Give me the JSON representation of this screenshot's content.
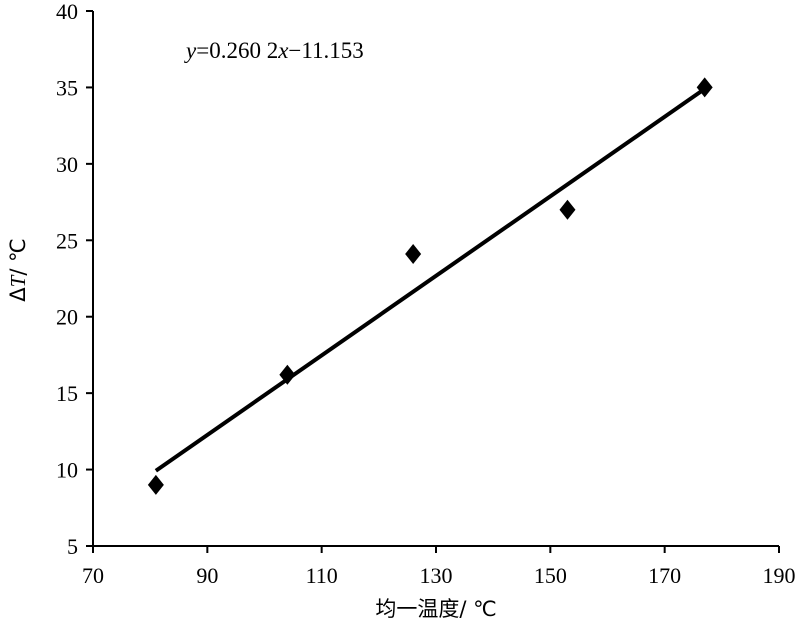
{
  "chart_data": {
    "type": "scatter",
    "xlabel": "均一温度/ ℃",
    "ylabel": "ΔT/ ℃",
    "ylabel_parts": {
      "prefix": "Δ",
      "var": "T",
      "unit": "/ ℃"
    },
    "xlim": [
      70,
      190
    ],
    "ylim": [
      5,
      40
    ],
    "x_ticks": [
      70,
      90,
      110,
      130,
      150,
      170,
      190
    ],
    "y_ticks": [
      5,
      10,
      15,
      20,
      25,
      30,
      35,
      40
    ],
    "grid": false,
    "legend": "none",
    "series": [
      {
        "marker": "diamond",
        "points": [
          {
            "x": 81,
            "y": 9
          },
          {
            "x": 104,
            "y": 16.2
          },
          {
            "x": 126,
            "y": 24.1
          },
          {
            "x": 153,
            "y": 27
          },
          {
            "x": 177,
            "y": 35
          }
        ]
      }
    ],
    "trendline": {
      "slope": 0.2602,
      "intercept": -11.153,
      "x_range": [
        81,
        177
      ],
      "equation": {
        "text": "y=0.260 2x−11.153",
        "parts": [
          "y",
          "=0.260 2",
          "x",
          "−11.153"
        ]
      }
    }
  }
}
